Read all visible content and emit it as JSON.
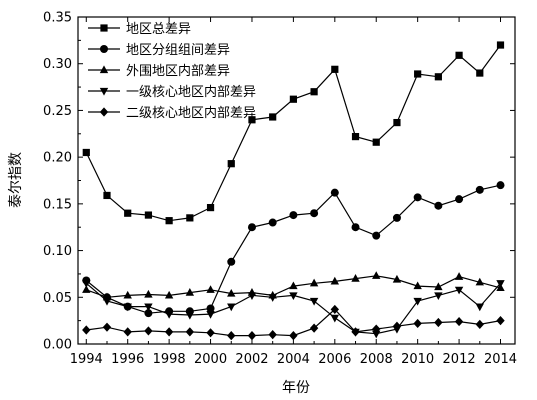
{
  "chart_data": {
    "type": "line",
    "xlabel": "年份",
    "ylabel": "泰尔指数",
    "xlim": [
      1993.6,
      2014.7
    ],
    "ylim": [
      0.0,
      0.35
    ],
    "x_ticks": [
      "1994",
      "1996",
      "1998",
      "2000",
      "2002",
      "2004",
      "2006",
      "2008",
      "2010",
      "2012",
      "2014"
    ],
    "y_ticks": [
      "0.00",
      "0.05",
      "0.10",
      "0.15",
      "0.20",
      "0.25",
      "0.30",
      "0.35"
    ],
    "grid": false,
    "legend_position": "top-left",
    "x": [
      1994,
      1995,
      1996,
      1997,
      1998,
      1999,
      2000,
      2001,
      2002,
      2003,
      2004,
      2005,
      2006,
      2007,
      2008,
      2009,
      2010,
      2011,
      2012,
      2013,
      2014
    ],
    "series": [
      {
        "name": "地区总差异",
        "marker": "square",
        "values": [
          0.205,
          0.159,
          0.14,
          0.138,
          0.132,
          0.135,
          0.146,
          0.193,
          0.24,
          0.243,
          0.262,
          0.27,
          0.294,
          0.222,
          0.216,
          0.237,
          0.289,
          0.286,
          0.309,
          0.29,
          0.32
        ]
      },
      {
        "name": "地区分组组间差异",
        "marker": "circle",
        "values": [
          0.068,
          0.05,
          0.04,
          0.033,
          0.035,
          0.035,
          0.038,
          0.088,
          0.125,
          0.13,
          0.138,
          0.14,
          0.162,
          0.125,
          0.116,
          0.135,
          0.157,
          0.148,
          0.155,
          0.165,
          0.17
        ]
      },
      {
        "name": "外围地区内部差异",
        "marker": "triangle-up",
        "values": [
          0.058,
          0.05,
          0.052,
          0.053,
          0.052,
          0.055,
          0.058,
          0.054,
          0.055,
          0.052,
          0.062,
          0.065,
          0.067,
          0.07,
          0.073,
          0.069,
          0.062,
          0.061,
          0.072,
          0.066,
          0.06
        ]
      },
      {
        "name": "一级核心地区内部差异",
        "marker": "triangle-down",
        "values": [
          0.065,
          0.046,
          0.04,
          0.04,
          0.032,
          0.031,
          0.032,
          0.04,
          0.052,
          0.05,
          0.052,
          0.046,
          0.028,
          0.013,
          0.011,
          0.016,
          0.046,
          0.052,
          0.058,
          0.04,
          0.065
        ]
      },
      {
        "name": "二级核心地区内部差异",
        "marker": "diamond",
        "values": [
          0.015,
          0.018,
          0.013,
          0.014,
          0.013,
          0.013,
          0.012,
          0.009,
          0.009,
          0.01,
          0.009,
          0.017,
          0.037,
          0.013,
          0.016,
          0.019,
          0.022,
          0.023,
          0.024,
          0.021,
          0.025
        ]
      }
    ]
  }
}
